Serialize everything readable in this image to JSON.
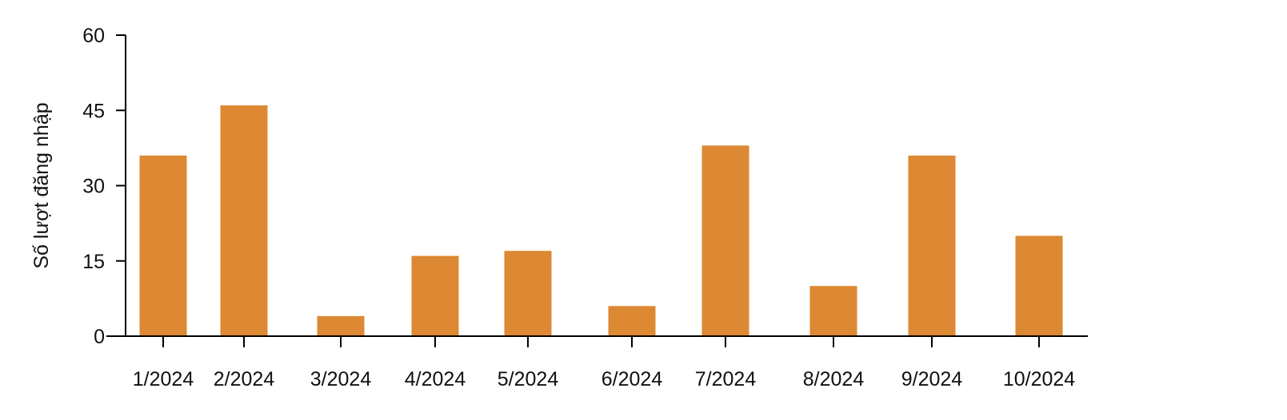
{
  "chart_data": {
    "type": "bar",
    "title": "",
    "xlabel": "",
    "ylabel": "Số lượt đăng nhập",
    "categories": [
      "1/2024",
      "2/2024",
      "3/2024",
      "4/2024",
      "5/2024",
      "6/2024",
      "7/2024",
      "8/2024",
      "9/2024",
      "10/2024"
    ],
    "values": [
      36,
      46,
      4,
      16,
      17,
      6,
      38,
      10,
      36,
      20
    ],
    "ylim": [
      0,
      60
    ],
    "yticks": [
      0,
      15,
      30,
      45,
      60
    ],
    "grid": false,
    "legend": null,
    "bar_color": "#dd8833"
  }
}
